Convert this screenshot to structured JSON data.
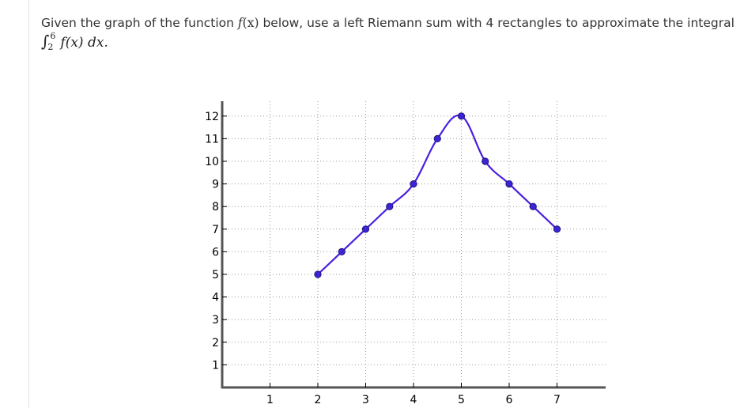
{
  "question": {
    "before": "Given the graph of the function ",
    "func": "f",
    "funcArg": "(x)",
    "middle": " below, use a left Riemann sum with ",
    "count": "4",
    "after": " rectangles to approximate the integral",
    "integral": {
      "symbol": "∫",
      "lower": "2",
      "upper": "6",
      "integrand": "f(x) dx."
    }
  },
  "colors": {
    "curve": "#4a1fe0",
    "point": "#3a24d6",
    "grid": "#9a9a9a",
    "axis": "#555555"
  },
  "chart_data": {
    "type": "line",
    "points": [
      {
        "x": 2,
        "y": 5
      },
      {
        "x": 2.5,
        "y": 6
      },
      {
        "x": 3,
        "y": 7
      },
      {
        "x": 3.5,
        "y": 8
      },
      {
        "x": 4,
        "y": 9
      },
      {
        "x": 4.5,
        "y": 11
      },
      {
        "x": 5,
        "y": 12
      },
      {
        "x": 5.5,
        "y": 10
      },
      {
        "x": 6,
        "y": 9
      },
      {
        "x": 6.5,
        "y": 8
      },
      {
        "x": 7,
        "y": 7
      }
    ],
    "xTicks": [
      {
        "value": 1,
        "label": "1"
      },
      {
        "value": 2,
        "label": "2"
      },
      {
        "value": 3,
        "label": "3"
      },
      {
        "value": 4,
        "label": "4"
      },
      {
        "value": 5,
        "label": "5"
      },
      {
        "value": 6,
        "label": "6"
      },
      {
        "value": 7,
        "label": "7"
      }
    ],
    "yTicks": [
      {
        "value": 1,
        "label": "1"
      },
      {
        "value": 2,
        "label": "2"
      },
      {
        "value": 3,
        "label": "3"
      },
      {
        "value": 4,
        "label": "4"
      },
      {
        "value": 5,
        "label": "5"
      },
      {
        "value": 6,
        "label": "6"
      },
      {
        "value": 7,
        "label": "7"
      },
      {
        "value": 8,
        "label": "8"
      },
      {
        "value": 9,
        "label": "9"
      },
      {
        "value": 10,
        "label": "10"
      },
      {
        "value": 11,
        "label": "11"
      },
      {
        "value": 12,
        "label": "12"
      }
    ],
    "xlim": [
      0,
      8
    ],
    "ylim": [
      0,
      13
    ],
    "grid": true,
    "title": "",
    "xlabel": "",
    "ylabel": ""
  }
}
